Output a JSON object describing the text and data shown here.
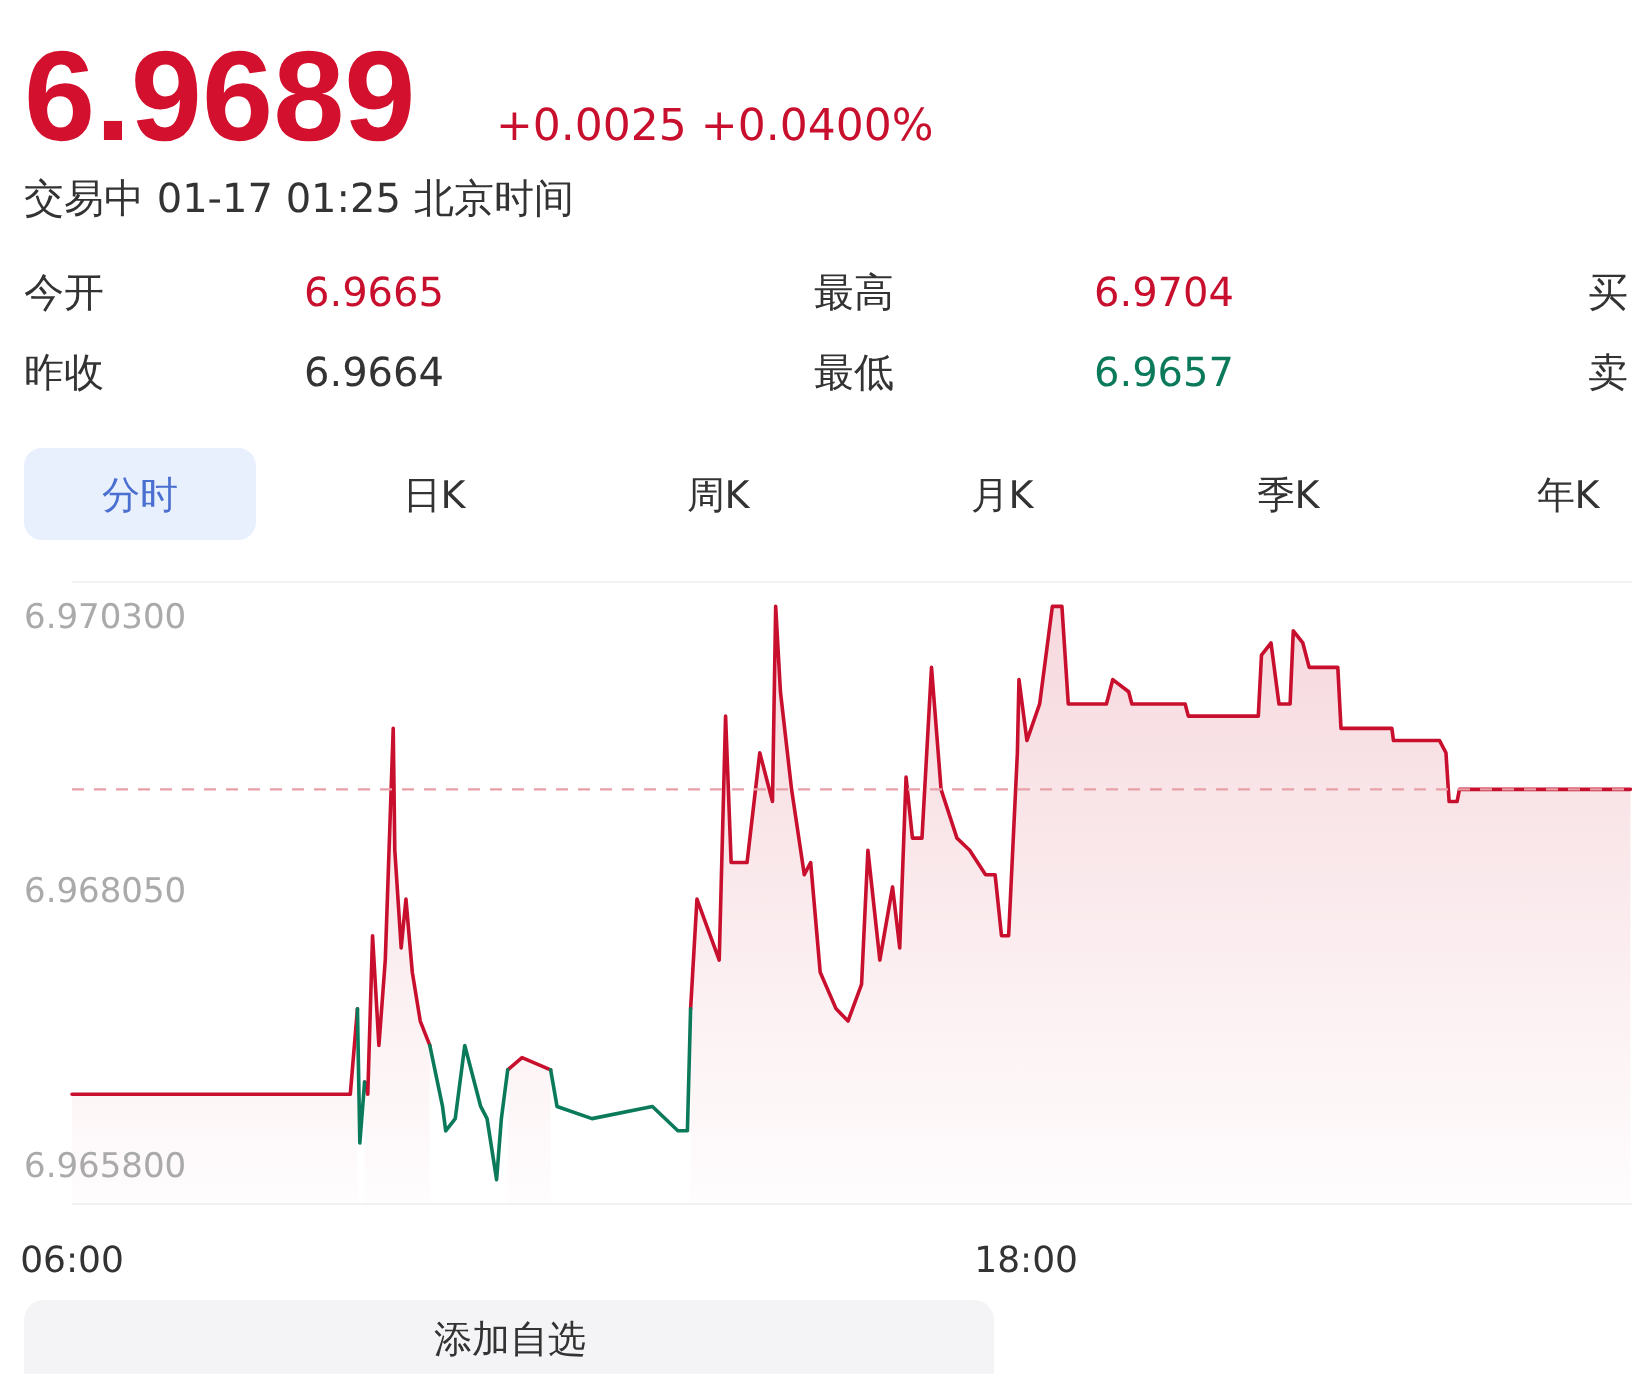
{
  "chart_data": {
    "type": "line",
    "title": "6.9689",
    "subtitle": "+0.0025 +0.0400%",
    "annotations": [
      "交易中 01-17 01:25 北京时间",
      "今开",
      "6.9665",
      "最高",
      "6.9704",
      "买",
      "昨收",
      "6.9664",
      "最低",
      "6.9657",
      "卖",
      "分时",
      "日K",
      "周K",
      "月K",
      "季K",
      "年K",
      "添加自选"
    ],
    "x": [
      6.0,
      9.5,
      9.59,
      9.62,
      9.68,
      9.72,
      9.78,
      9.86,
      9.94,
      10.04,
      10.06,
      10.14,
      10.2,
      10.28,
      10.38,
      10.5,
      10.66,
      10.7,
      10.82,
      10.94,
      11.14,
      11.22,
      11.34,
      11.4,
      11.48,
      11.66,
      12.02,
      12.1,
      12.54,
      13.3,
      13.62,
      13.74,
      13.78,
      13.86,
      14.14,
      14.22,
      14.29,
      14.49,
      14.65,
      14.81,
      14.85,
      14.91,
      15.05,
      15.21,
      15.29,
      15.41,
      15.61,
      15.76,
      15.93,
      16.01,
      16.16,
      16.32,
      16.41,
      16.49,
      16.57,
      16.69,
      16.81,
      16.93,
      17.13,
      17.29,
      17.49,
      17.61,
      17.69,
      17.78,
      17.89,
      17.91,
      18.01,
      18.17,
      18.33,
      18.45,
      18.53,
      19.01,
      19.09,
      19.29,
      19.33,
      20.0,
      20.04,
      20.92,
      20.96,
      21.08,
      21.18,
      21.32,
      21.36,
      21.48,
      21.56,
      21.92,
      21.96,
      22.6,
      22.62,
      23.2,
      23.28,
      23.32,
      23.42,
      23.45,
      25.6
    ],
    "series": [
      {
        "type": "area",
        "color": "#c8102e",
        "values": [
          6.9664,
          6.9664,
          6.9671,
          null,
          6.9665,
          6.9664,
          6.9677,
          6.9668,
          6.9675,
          6.9694,
          6.9684,
          6.9676,
          6.968,
          6.9674,
          6.967,
          6.9668,
          null,
          null,
          null,
          null,
          null,
          null,
          null,
          null,
          6.9666,
          6.9667,
          6.9666,
          null,
          null,
          null,
          null,
          null,
          6.9671,
          6.968,
          6.9675,
          6.9695,
          6.9683,
          6.9683,
          6.9692,
          6.9688,
          6.9704,
          6.9697,
          6.9689,
          6.9682,
          6.9683,
          6.9674,
          6.9671,
          6.967,
          6.9673,
          6.9684,
          6.9675,
          6.9681,
          6.9676,
          6.969,
          6.9685,
          6.9685,
          6.9699,
          6.9689,
          6.9685,
          6.9684,
          6.9682,
          6.9682,
          6.9677,
          6.9677,
          6.9692,
          6.9698,
          6.9693,
          6.9696,
          6.9704,
          6.9704,
          6.9696,
          6.9696,
          6.9698,
          6.9697,
          6.9696,
          6.9696,
          6.9695,
          6.9695,
          6.97,
          6.9701,
          6.9696,
          6.9696,
          6.9702,
          6.9701,
          6.9699,
          6.9699,
          6.9694,
          6.9694,
          6.9693,
          6.9693,
          6.9692,
          6.9688,
          6.9688,
          6.9689,
          6.9689
        ]
      },
      {
        "type": "line",
        "color": "#0b7a5a",
        "values": [
          null,
          null,
          6.9671,
          6.966,
          6.9665,
          null,
          null,
          null,
          null,
          null,
          null,
          null,
          null,
          null,
          null,
          6.9668,
          6.9663,
          6.9661,
          6.9662,
          6.9668,
          6.9663,
          6.9662,
          6.9657,
          6.9662,
          6.9666,
          null,
          6.9666,
          6.9663,
          6.9662,
          6.9663,
          6.9661,
          6.9661,
          6.9671,
          null,
          null,
          null,
          null,
          null,
          null,
          null,
          null,
          null,
          null,
          null,
          null,
          null,
          null,
          null,
          null,
          null,
          null,
          null,
          null,
          null,
          null,
          null,
          null,
          null,
          null,
          null,
          null,
          null,
          null,
          null,
          null,
          null,
          null,
          null,
          null,
          null,
          null,
          null,
          null,
          null,
          null,
          null,
          null,
          null,
          null,
          null,
          null,
          null,
          null,
          null,
          null,
          null,
          null,
          null,
          null,
          null,
          null,
          null,
          null,
          null,
          null
        ]
      }
    ],
    "xlim": [
      6,
      25.62
    ],
    "xticks": [
      {
        "value": 6,
        "label": "06:00"
      },
      {
        "value": 18,
        "label": "18:00"
      }
    ],
    "ylim": [
      6.9655,
      6.9706
    ],
    "yticks": [
      {
        "value": 6.9703,
        "label": "6.970300"
      },
      {
        "value": 6.96805,
        "label": "6.968050"
      },
      {
        "value": 6.9658,
        "label": "6.965800"
      }
    ],
    "ref_lines": [
      {
        "axis": "y",
        "value": 6.9689,
        "color": "#e8a0a8",
        "line_style": "dashed"
      }
    ],
    "grid": false
  }
}
